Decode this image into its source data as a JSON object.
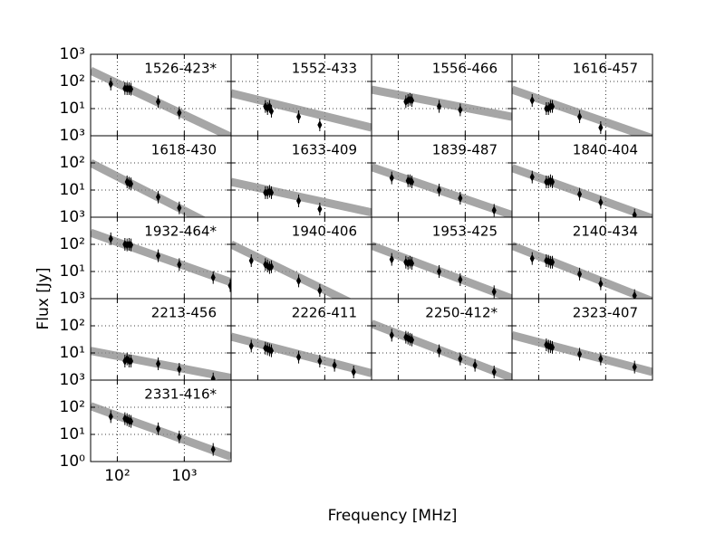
{
  "xlabel": "Frequency [MHz]",
  "ylabel": "Flux [Jy]",
  "xlim": [
    40,
    5000
  ],
  "ylim": [
    1,
    1000
  ],
  "xticks": [
    {
      "value": 100,
      "label": "10²"
    },
    {
      "value": 1000,
      "label": "10³"
    }
  ],
  "yticks": [
    {
      "value": 1,
      "label": "10⁰"
    },
    {
      "value": 10,
      "label": "10¹"
    },
    {
      "value": 100,
      "label": "10²"
    },
    {
      "value": 1000,
      "label": "10³"
    }
  ],
  "log_x": true,
  "log_y": true,
  "grid": true,
  "point_color": "#000000",
  "fit_color": "#888888",
  "chart_data": [
    {
      "type": "scatter",
      "title": "1526-423*",
      "x": [
        80,
        130,
        140,
        150,
        160,
        408,
        843
      ],
      "values": [
        80,
        55,
        54,
        54,
        52,
        18,
        7
      ],
      "fit_x": [
        40,
        5000
      ],
      "fit_values": [
        250,
        0.9
      ]
    },
    {
      "type": "scatter",
      "title": "1552-433",
      "x": [
        130,
        140,
        150,
        160,
        408,
        843
      ],
      "values": [
        12,
        10,
        12,
        8,
        5,
        2.5
      ],
      "fit_x": [
        40,
        5000
      ],
      "fit_values": [
        37,
        2
      ]
    },
    {
      "type": "scatter",
      "title": "1556-466",
      "x": [
        130,
        140,
        150,
        160,
        408,
        843
      ],
      "values": [
        18,
        20,
        22,
        20,
        12,
        9
      ],
      "fit_x": [
        40,
        5000
      ],
      "fit_values": [
        50,
        5
      ]
    },
    {
      "type": "scatter",
      "title": "1616-457",
      "x": [
        80,
        130,
        140,
        150,
        160,
        408,
        843
      ],
      "values": [
        20,
        10,
        10,
        12,
        12,
        5,
        2
      ],
      "fit_x": [
        40,
        5000
      ],
      "fit_values": [
        50,
        0.8
      ]
    },
    {
      "type": "scatter",
      "title": "1618-430",
      "x": [
        140,
        150,
        160,
        408,
        843
      ],
      "values": [
        20,
        18,
        17,
        5.5,
        2.2
      ],
      "fit_x": [
        40,
        5000
      ],
      "fit_values": [
        100,
        0.23
      ]
    },
    {
      "type": "scatter",
      "title": "1633-409",
      "x": [
        130,
        140,
        150,
        160,
        408,
        843
      ],
      "values": [
        8,
        8,
        9,
        8,
        4,
        2
      ],
      "fit_x": [
        40,
        5000
      ],
      "fit_values": [
        20,
        1.5
      ]
    },
    {
      "type": "scatter",
      "title": "1839-487",
      "x": [
        80,
        140,
        150,
        160,
        408,
        843,
        2700
      ],
      "values": [
        28,
        22,
        22,
        20,
        10,
        5,
        1.8
      ],
      "fit_x": [
        40,
        5000
      ],
      "fit_values": [
        70,
        1.2
      ]
    },
    {
      "type": "scatter",
      "title": "1840-404",
      "x": [
        80,
        130,
        140,
        150,
        160,
        408,
        843,
        2700
      ],
      "values": [
        30,
        20,
        20,
        22,
        20,
        7,
        3.5,
        1.2
      ],
      "fit_x": [
        40,
        5000
      ],
      "fit_values": [
        65,
        0.9
      ]
    },
    {
      "type": "scatter",
      "title": "1932-464*",
      "x": [
        80,
        130,
        140,
        150,
        160,
        408,
        843,
        2700,
        4850
      ],
      "values": [
        160,
        100,
        95,
        100,
        95,
        38,
        18,
        6,
        3
      ],
      "fit_x": [
        40,
        5000
      ],
      "fit_values": [
        270,
        4
      ]
    },
    {
      "type": "scatter",
      "title": "1940-406",
      "x": [
        80,
        130,
        140,
        150,
        160,
        408,
        843
      ],
      "values": [
        25,
        18,
        16,
        14,
        15,
        4.5,
        2
      ],
      "fit_x": [
        40,
        5000
      ],
      "fit_values": [
        100,
        0.3
      ]
    },
    {
      "type": "scatter",
      "title": "1953-425",
      "x": [
        80,
        130,
        140,
        150,
        160,
        408,
        843,
        2700
      ],
      "values": [
        28,
        22,
        20,
        22,
        20,
        10,
        5,
        1.8
      ],
      "fit_x": [
        40,
        5000
      ],
      "fit_values": [
        90,
        1
      ]
    },
    {
      "type": "scatter",
      "title": "2140-434",
      "x": [
        80,
        130,
        140,
        150,
        160,
        408,
        843,
        2700
      ],
      "values": [
        30,
        25,
        24,
        22,
        22,
        8,
        3.5,
        1.3
      ],
      "fit_x": [
        40,
        5000
      ],
      "fit_values": [
        90,
        0.8
      ]
    },
    {
      "type": "scatter",
      "title": "2213-456",
      "x": [
        130,
        140,
        150,
        160,
        408,
        843,
        2700
      ],
      "values": [
        5,
        6,
        5,
        5,
        4,
        2.5,
        1.1
      ],
      "fit_x": [
        40,
        5000
      ],
      "fit_values": [
        12,
        1.2
      ]
    },
    {
      "type": "scatter",
      "title": "2226-411",
      "x": [
        80,
        130,
        140,
        150,
        160,
        408,
        843,
        1400,
        2700
      ],
      "values": [
        18,
        15,
        14,
        13,
        12,
        7,
        5,
        3.5,
        2
      ],
      "fit_x": [
        40,
        5000
      ],
      "fit_values": [
        40,
        1.8
      ]
    },
    {
      "type": "scatter",
      "title": "2250-412*",
      "x": [
        80,
        130,
        140,
        150,
        160,
        408,
        843,
        1400,
        2700
      ],
      "values": [
        45,
        38,
        35,
        32,
        30,
        12,
        6,
        3.5,
        2
      ],
      "fit_x": [
        40,
        5000
      ],
      "fit_values": [
        120,
        1.2
      ]
    },
    {
      "type": "scatter",
      "title": "2323-407",
      "x": [
        130,
        140,
        150,
        160,
        408,
        843,
        2700
      ],
      "values": [
        20,
        18,
        17,
        16,
        9,
        6,
        3
      ],
      "fit_x": [
        40,
        5000
      ],
      "fit_values": [
        45,
        2
      ]
    },
    {
      "type": "scatter",
      "title": "2331-416*",
      "x": [
        80,
        130,
        140,
        150,
        160,
        408,
        843,
        2700
      ],
      "values": [
        45,
        38,
        35,
        32,
        30,
        16,
        8,
        2.8
      ],
      "fit_x": [
        40,
        5000
      ],
      "fit_values": [
        110,
        1.5
      ]
    }
  ]
}
